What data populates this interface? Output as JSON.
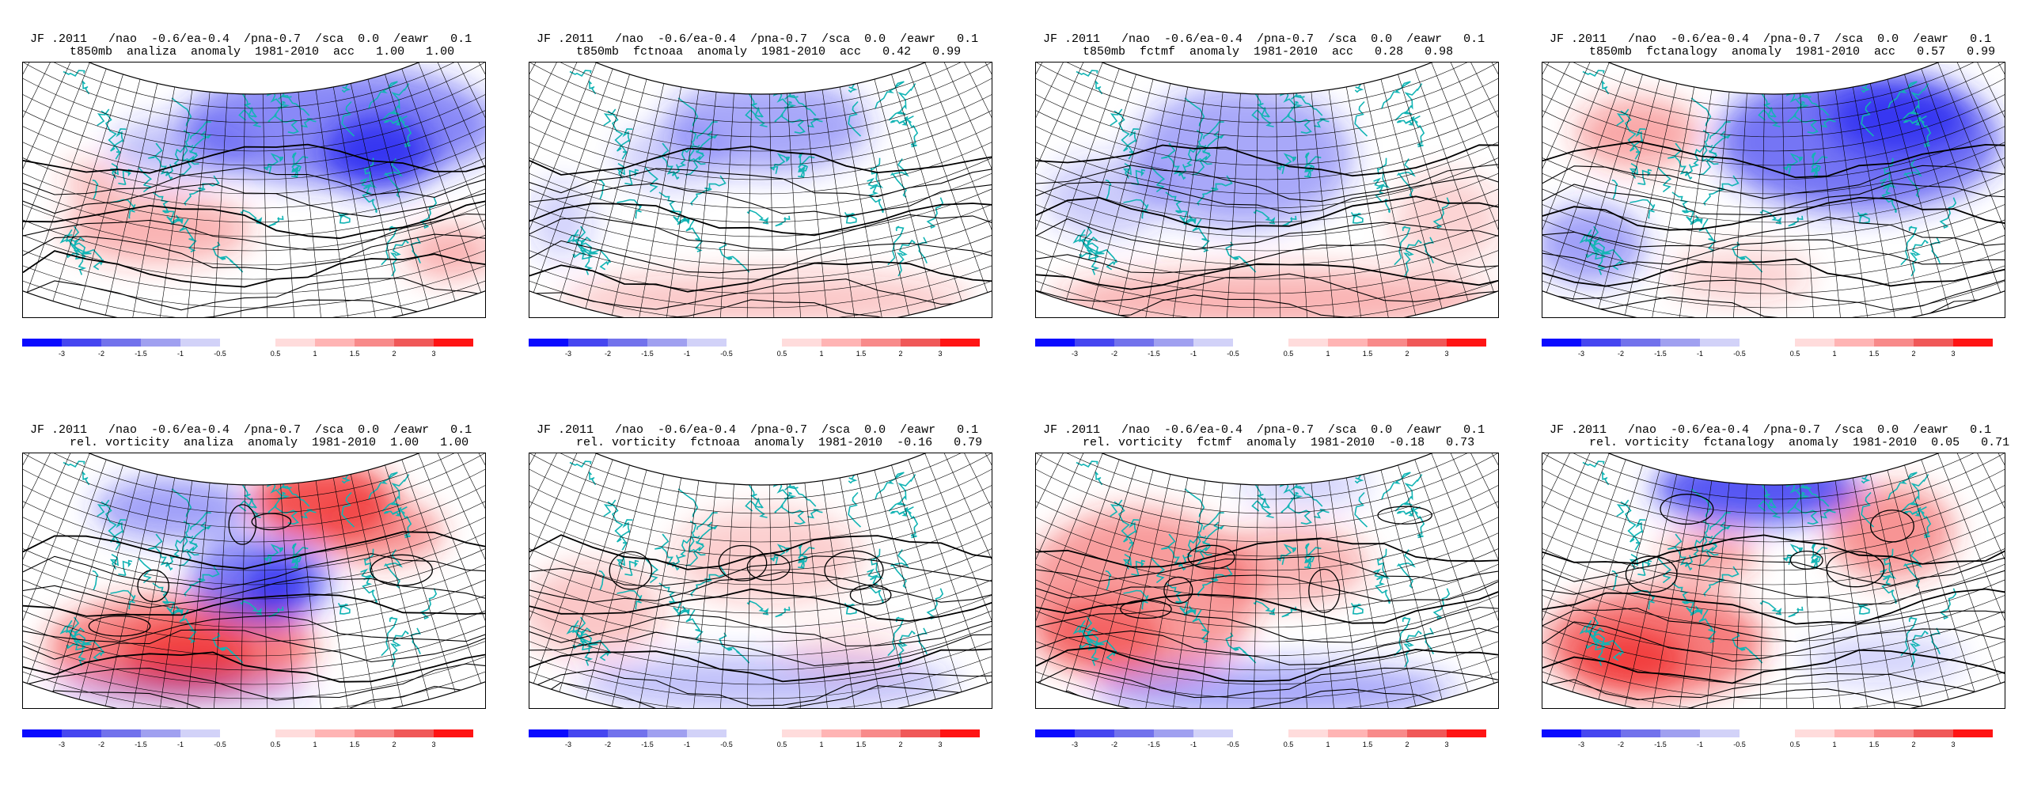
{
  "header_prefix": "JF .2011   /nao  -0.6/ea-0.4  /pna-0.7  /sca  0.0  /eawr   0.1",
  "colorbar": {
    "neg_colors": [
      "#0a0aff",
      "#4646f0",
      "#7272ec",
      "#a0a0f0",
      "#d2d2f8"
    ],
    "neg_labels": [
      "-3",
      "-2",
      "-1.5",
      "-1",
      "-0.5"
    ],
    "pos_colors": [
      "#ffdcdc",
      "#ffb4b4",
      "#f88a8a",
      "#f05858",
      "#ff1414"
    ],
    "pos_labels": [
      "0.5",
      "1",
      "1.5",
      "2",
      "3"
    ]
  },
  "panels": [
    {
      "title1": "JF .2011   /nao  -0.6/ea-0.4  /pna-0.7  /sca  0.0  /eawr   0.1",
      "title2": "t850mb  analiza  anomaly  1981-2010  acc   1.00   1.00"
    },
    {
      "title1": "JF .2011   /nao  -0.6/ea-0.4  /pna-0.7  /sca  0.0  /eawr   0.1",
      "title2": "t850mb  fctnoaa  anomaly  1981-2010  acc   0.42   0.99"
    },
    {
      "title1": "JF .2011   /nao  -0.6/ea-0.4  /pna-0.7  /sca  0.0  /eawr   0.1",
      "title2": "t850mb  fctmf  anomaly  1981-2010  acc   0.28   0.98"
    },
    {
      "title1": "JF .2011   /nao  -0.6/ea-0.4  /pna-0.7  /sca  0.0  /eawr   0.1",
      "title2": "t850mb  fctanalogy  anomaly  1981-2010  acc   0.57   0.99"
    },
    {
      "title1": "JF .2011   /nao  -0.6/ea-0.4  /pna-0.7  /sca  0.0  /eawr   0.1",
      "title2": "rel. vorticity  analiza  anomaly  1981-2010  1.00   1.00"
    },
    {
      "title1": "JF .2011   /nao  -0.6/ea-0.4  /pna-0.7  /sca  0.0  /eawr   0.1",
      "title2": "rel. vorticity  fctnoaa  anomaly  1981-2010  -0.16   0.79"
    },
    {
      "title1": "JF .2011   /nao  -0.6/ea-0.4  /pna-0.7  /sca  0.0  /eawr   0.1",
      "title2": "rel. vorticity  fctmf  anomaly  1981-2010  -0.18   0.73"
    },
    {
      "title1": "JF .2011   /nao  -0.6/ea-0.4  /pna-0.7  /sca  0.0  /eawr   0.1",
      "title2": "rel. vorticity  fctanalogy  anomaly  1981-2010  0.05   0.71"
    }
  ],
  "chart_data": [
    {
      "type": "heatmap",
      "variable": "t850mb",
      "source": "analiza",
      "acc": [
        1.0,
        1.0
      ],
      "anomalies": [
        {
          "sign": "neg",
          "strength": 3,
          "where": "north-east"
        },
        {
          "sign": "pos",
          "strength": 1,
          "where": "south-west"
        }
      ]
    },
    {
      "type": "heatmap",
      "variable": "t850mb",
      "source": "fctnoaa",
      "acc": [
        0.42,
        0.99
      ],
      "anomalies": [
        {
          "sign": "neg",
          "strength": 1.5,
          "where": "north"
        },
        {
          "sign": "pos",
          "strength": 0.5,
          "where": "south"
        }
      ]
    },
    {
      "type": "heatmap",
      "variable": "t850mb",
      "source": "fctmf",
      "acc": [
        0.28,
        0.98
      ],
      "anomalies": [
        {
          "sign": "neg",
          "strength": 1.5,
          "where": "north-central"
        },
        {
          "sign": "pos",
          "strength": 1,
          "where": "south"
        }
      ]
    },
    {
      "type": "heatmap",
      "variable": "t850mb",
      "source": "fctanalogy",
      "acc": [
        0.57,
        0.99
      ],
      "anomalies": [
        {
          "sign": "neg",
          "strength": 3,
          "where": "north-east"
        },
        {
          "sign": "pos",
          "strength": 1,
          "where": "north-west"
        }
      ]
    },
    {
      "type": "heatmap",
      "variable": "rel. vorticity",
      "source": "analiza",
      "acc": [
        1.0,
        1.0
      ],
      "anomalies": [
        {
          "sign": "pos",
          "strength": 3,
          "where": "south-west"
        },
        {
          "sign": "pos",
          "strength": 3,
          "where": "north-east"
        },
        {
          "sign": "neg",
          "strength": 3,
          "where": "centre"
        }
      ]
    },
    {
      "type": "heatmap",
      "variable": "rel. vorticity",
      "source": "fctnoaa",
      "acc": [
        -0.16,
        0.79
      ],
      "anomalies": [
        {
          "sign": "pos",
          "strength": 1,
          "where": "west"
        },
        {
          "sign": "neg",
          "strength": 1,
          "where": "south"
        }
      ]
    },
    {
      "type": "heatmap",
      "variable": "rel. vorticity",
      "source": "fctmf",
      "acc": [
        -0.18,
        0.73
      ],
      "anomalies": [
        {
          "sign": "pos",
          "strength": 2,
          "where": "west"
        },
        {
          "sign": "neg",
          "strength": 1.5,
          "where": "south"
        }
      ]
    },
    {
      "type": "heatmap",
      "variable": "rel. vorticity",
      "source": "fctanalogy",
      "acc": [
        0.05,
        0.71
      ],
      "anomalies": [
        {
          "sign": "neg",
          "strength": 3,
          "where": "north"
        },
        {
          "sign": "pos",
          "strength": 3,
          "where": "south-west"
        },
        {
          "sign": "pos",
          "strength": 2,
          "where": "north-east"
        }
      ]
    }
  ]
}
